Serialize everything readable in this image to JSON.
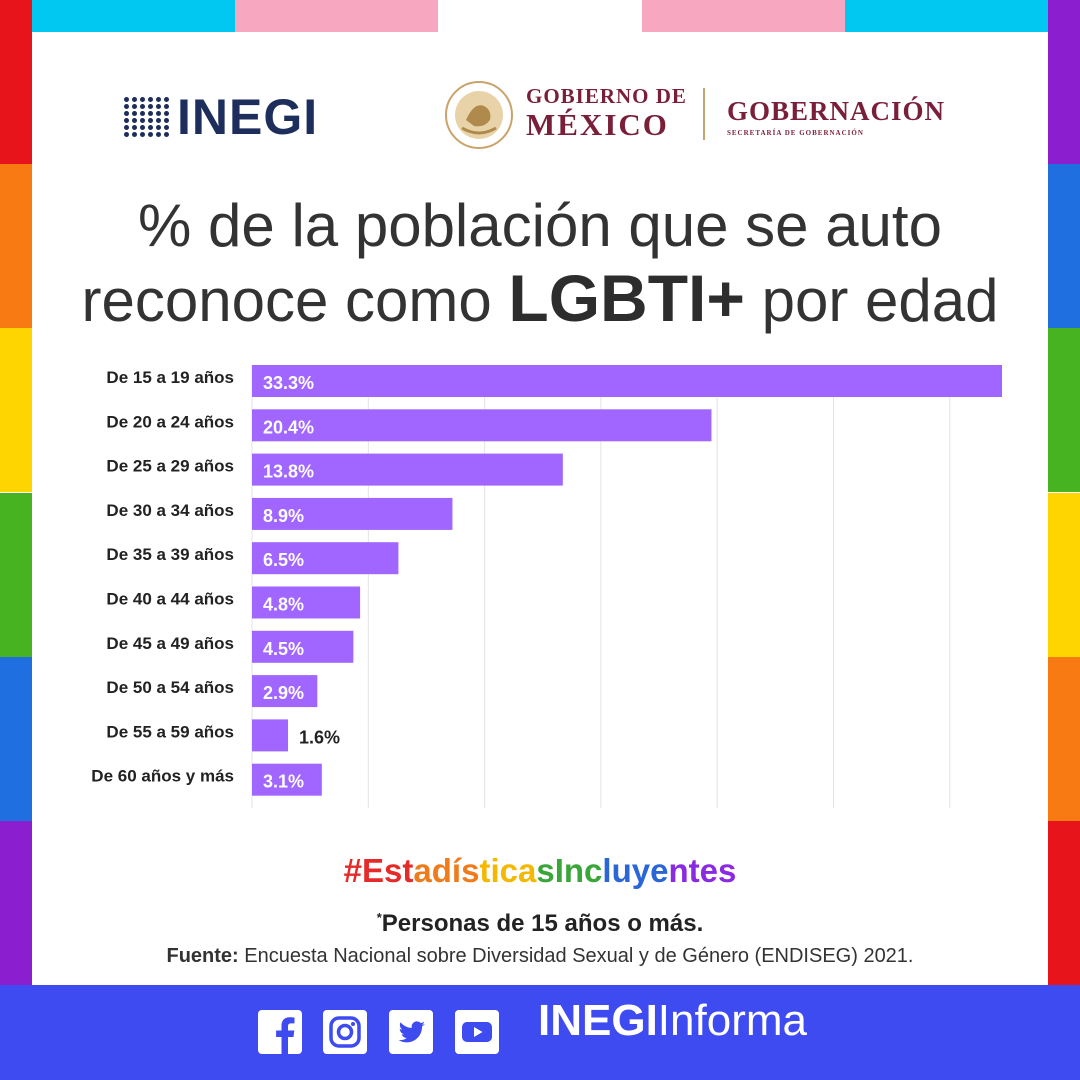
{
  "header": {
    "inegi_logo": "INEGI",
    "gob_line1": "GOBIERNO DE",
    "gob_line2": "MÉXICO",
    "gobernacion": "GOBERNACIÓN",
    "gobernacion_sub": "SECRETARÍA DE GOBERNACIÓN"
  },
  "title": {
    "part1": "% de la población que se auto",
    "part2": "reconoce como ",
    "emphasis": "LGBTI+",
    "part3": " por edad"
  },
  "chart_data": {
    "type": "bar",
    "orientation": "horizontal",
    "categories": [
      "De 15 a 19 años",
      "De 20 a 24 años",
      "De 25 a 29 años",
      "De 30 a 34 años",
      "De 35 a 39 años",
      "De 40 a 44 años",
      "De 45 a 49 años",
      "De 50 a 54 años",
      "De 55 a 59 años",
      "De 60 años y más"
    ],
    "values": [
      33.3,
      20.4,
      13.8,
      8.9,
      6.5,
      4.8,
      4.5,
      2.9,
      1.6,
      3.1
    ],
    "labels": [
      "33.3%",
      "20.4%",
      "13.8%",
      "8.9%",
      "6.5%",
      "4.8%",
      "4.5%",
      "2.9%",
      "1.6%",
      "3.1%"
    ],
    "xlim": [
      0,
      35
    ],
    "grid": true,
    "bar_color": "#a066ff"
  },
  "hashtag": "#EstadísticasIncluyentes",
  "hashtag_colors": [
    "#e52a2a",
    "#f07b1b",
    "#f5b800",
    "#3aa63a",
    "#2a66d6",
    "#8a2be2"
  ],
  "note": "Personas de 15 años o más.",
  "note_mark": "*",
  "source_label": "Fuente:",
  "source_text": " Encuesta Nacional sobre Diversidad Sexual y de Género (ENDISEG) 2021.",
  "footer": {
    "brand_bold": "INEGI",
    "brand_light": "Informa",
    "icons": [
      "facebook-icon",
      "instagram-icon",
      "twitter-icon",
      "youtube-icon"
    ],
    "color": "#3e4bf0"
  },
  "frame_colors": [
    "#e8141b",
    "#f77a12",
    "#ffd500",
    "#48b320",
    "#1f6fe0",
    "#8b1ecf"
  ],
  "top_bar_colors": [
    "#00c8f0",
    "#f7a8c0",
    "#ffffff",
    "#f7a8c0",
    "#00c8f0"
  ]
}
